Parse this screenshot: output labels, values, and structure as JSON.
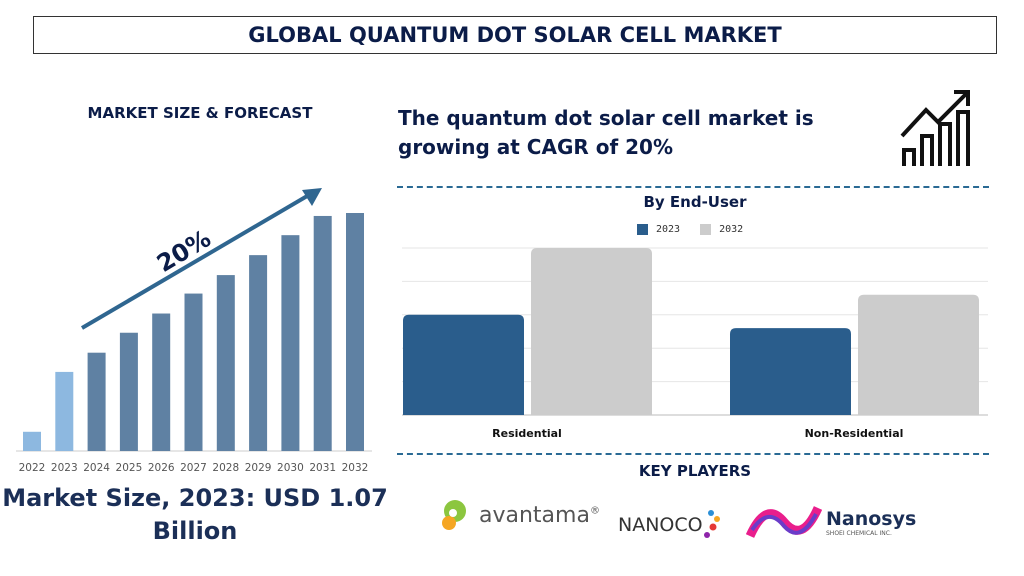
{
  "header": {
    "title": "GLOBAL QUANTUM DOT SOLAR CELL MARKET"
  },
  "left": {
    "section_title": "MARKET SIZE & FORECAST",
    "cagr_label": "20%",
    "market_size_text": "Market Size, 2023: USD 1.07 Billion"
  },
  "right": {
    "headline": "The quantum dot solar cell market is growing at CAGR of 20%",
    "growth_icon": "bar-growth-arrow-icon",
    "key_players_title": "KEY PLAYERS",
    "players": [
      {
        "name": "avantama",
        "suffix": "®"
      },
      {
        "name": "NANOCO"
      },
      {
        "name": "Nanosys",
        "sub": "SHOEI CHEMICAL INC."
      }
    ]
  },
  "chart_data": [
    {
      "type": "bar",
      "title": "",
      "categories": [
        "2022",
        "2023",
        "2024",
        "2025",
        "2026",
        "2027",
        "2028",
        "2029",
        "2030",
        "2031",
        "2032"
      ],
      "values": [
        0.26,
        1.07,
        1.33,
        1.6,
        1.86,
        2.13,
        2.38,
        2.65,
        2.92,
        3.18,
        3.22
      ],
      "unit": "USD Billion (approx.)",
      "annotation": "20%",
      "colors": {
        "historic": "#8db8e0",
        "forecast": "#5f81a3",
        "arrow": "#2f6690"
      },
      "highlight_light": [
        "2022",
        "2023"
      ],
      "grid": false
    },
    {
      "type": "bar",
      "title": "By End-User",
      "categories": [
        "Residential",
        "Non-Residential"
      ],
      "series": [
        {
          "name": "2023",
          "values": [
            3.0,
            2.6
          ],
          "color": "#2a5d8c"
        },
        {
          "name": "2032",
          "values": [
            5.0,
            3.6
          ],
          "color": "#cccccc"
        }
      ],
      "ylim": [
        0,
        5
      ],
      "grid": true,
      "legend": "top"
    }
  ]
}
